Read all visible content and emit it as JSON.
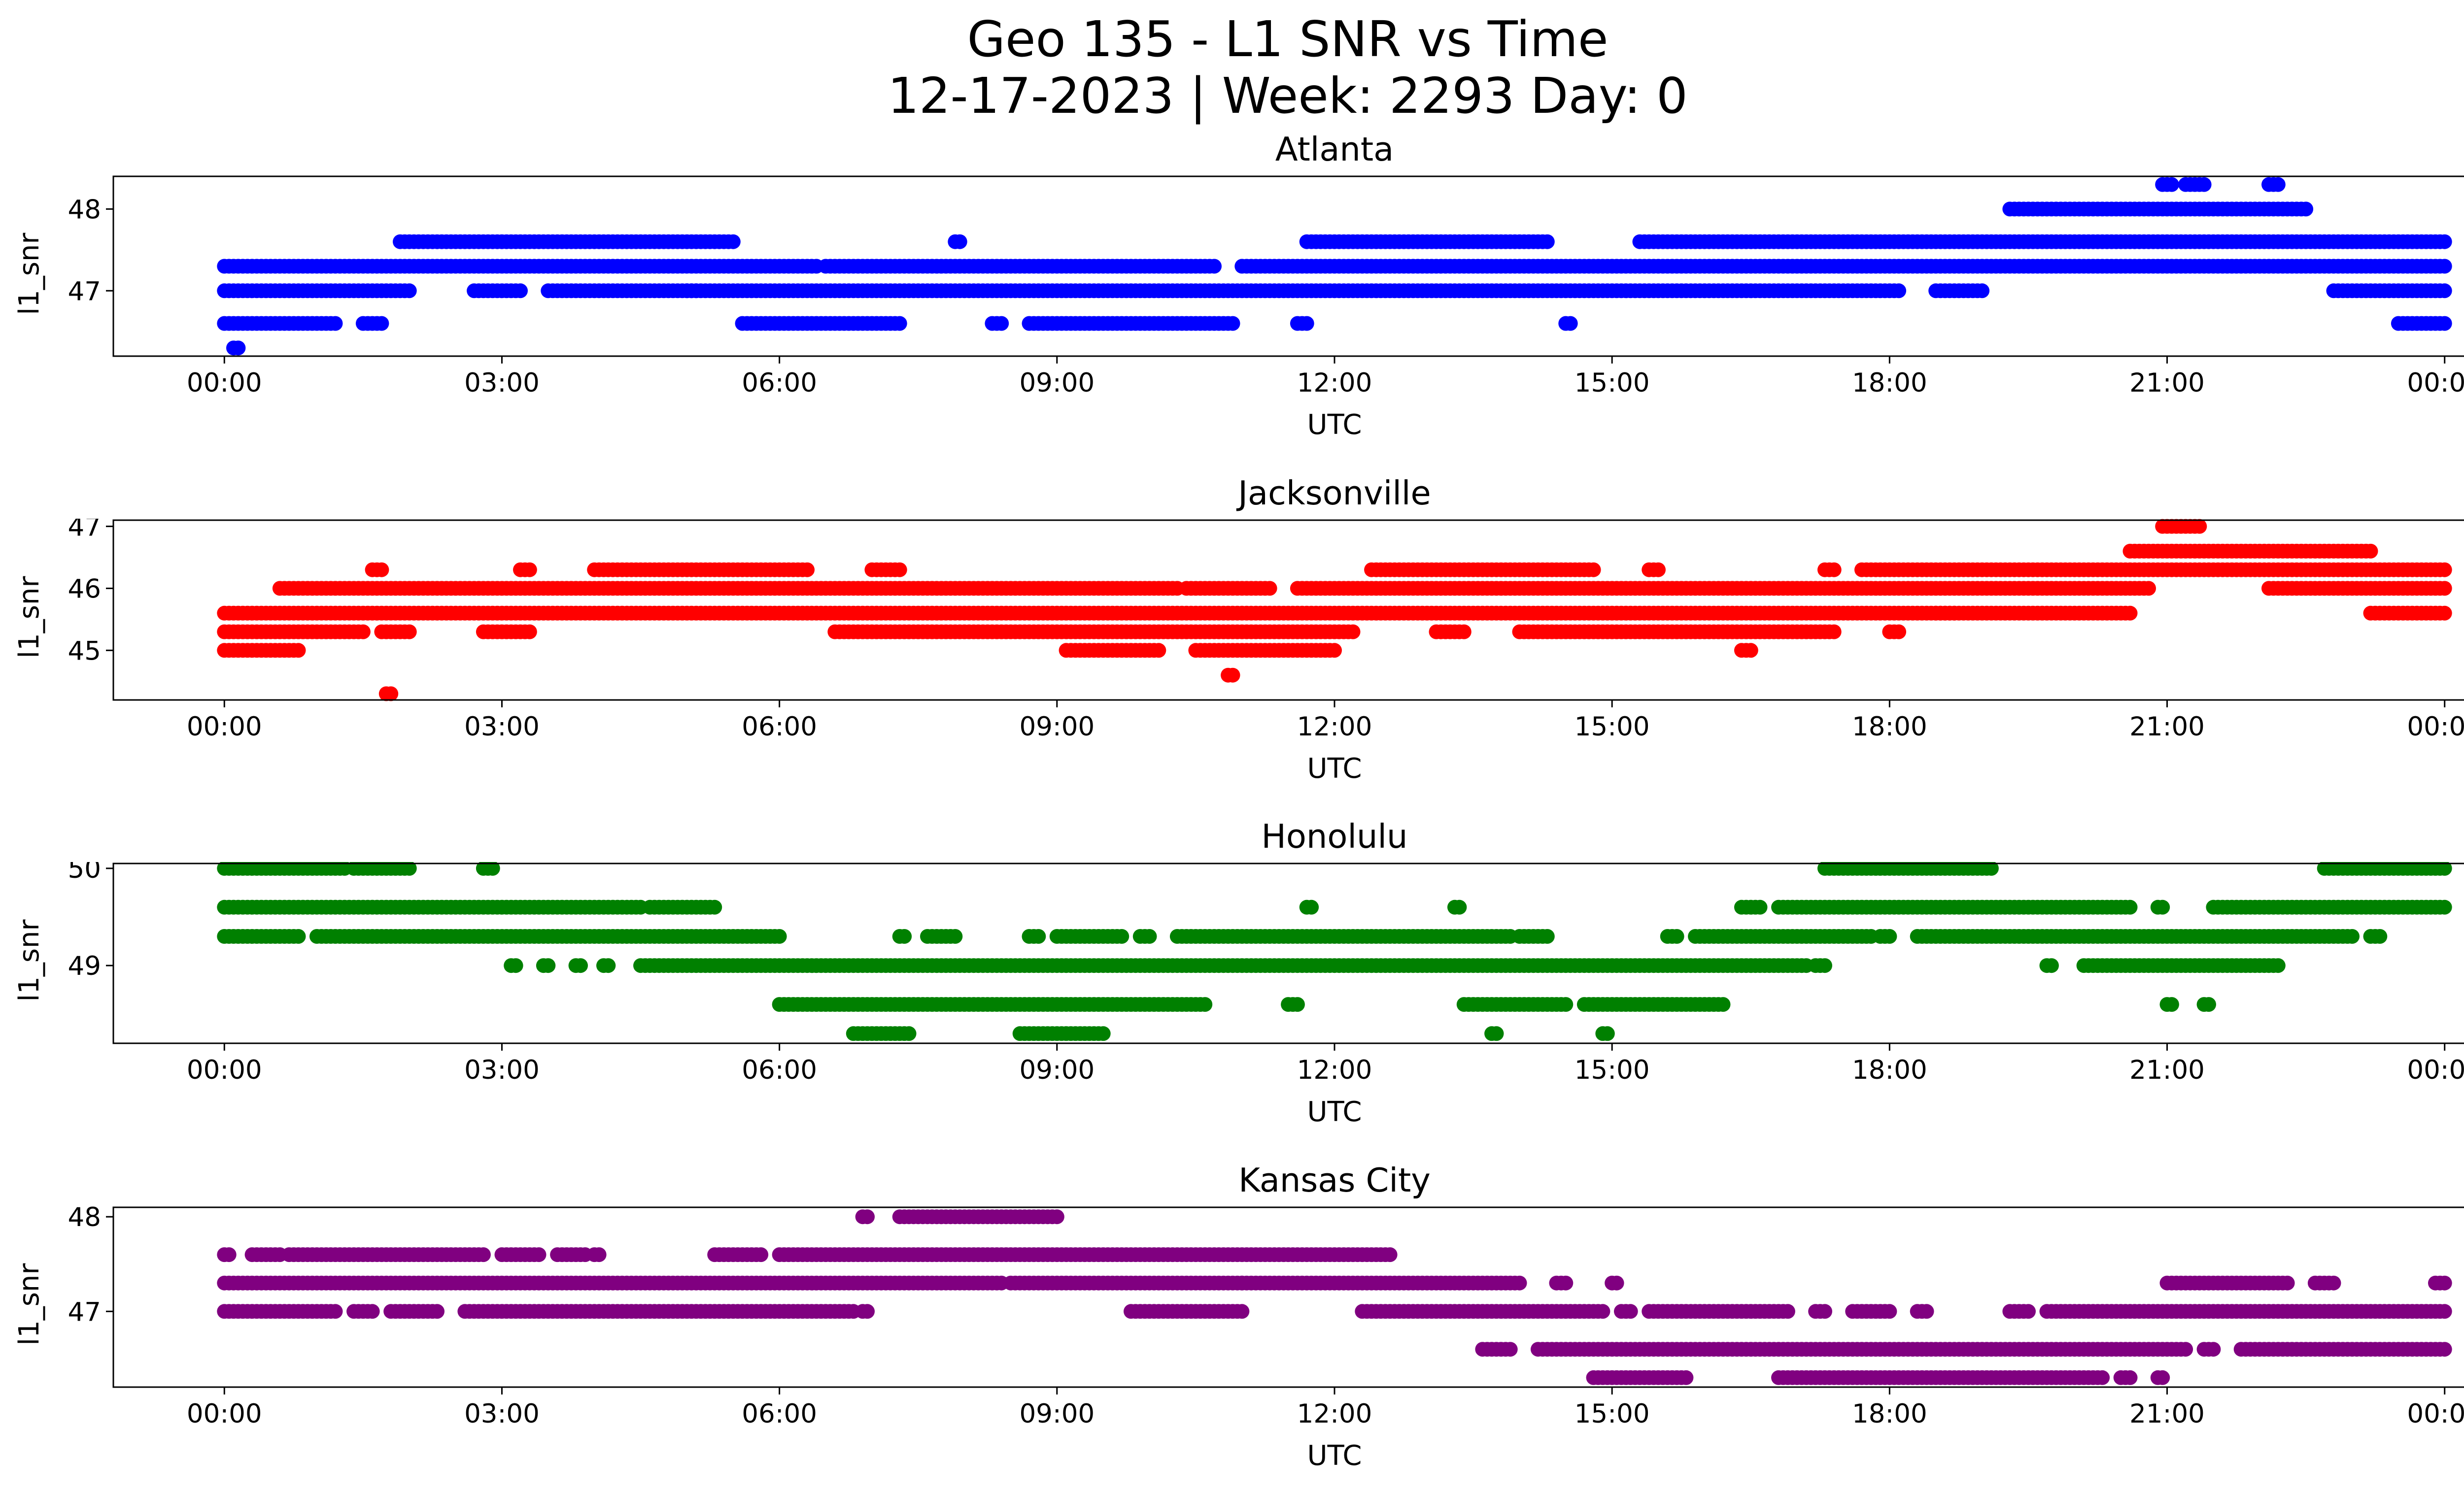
{
  "title_line1": "Geo 135 - L1 SNR vs Time",
  "title_line2": "12-17-2023 | Week: 2293 Day: 0",
  "chart_data": [
    {
      "type": "scatter",
      "title": "Atlanta",
      "xlabel": "UTC",
      "ylabel": "l1_snr",
      "color": "#0000ff",
      "xlim": [
        -1.2,
        25.2
      ],
      "ylim": [
        46.2,
        48.4
      ],
      "xticks": [
        "00:00",
        "03:00",
        "06:00",
        "09:00",
        "12:00",
        "15:00",
        "18:00",
        "21:00",
        "00:00"
      ],
      "yticks": [
        47,
        48
      ],
      "levels": [
        {
          "y": 48.3,
          "x_ranges": [
            [
              20.95,
              21.05
            ],
            [
              21.2,
              21.4
            ],
            [
              22.1,
              22.2
            ]
          ]
        },
        {
          "y": 48.0,
          "x_ranges": [
            [
              19.3,
              22.5
            ]
          ]
        },
        {
          "y": 47.6,
          "x_ranges": [
            [
              1.9,
              5.5
            ],
            [
              7.9,
              7.95
            ],
            [
              11.7,
              14.3
            ],
            [
              15.3,
              24.0
            ]
          ]
        },
        {
          "y": 47.3,
          "x_ranges": [
            [
              0.0,
              6.4
            ],
            [
              6.5,
              10.7
            ],
            [
              11.0,
              24.0
            ]
          ]
        },
        {
          "y": 47.0,
          "x_ranges": [
            [
              0.0,
              2.0
            ],
            [
              2.7,
              3.2
            ],
            [
              3.5,
              5.1
            ],
            [
              5.0,
              18.1
            ],
            [
              18.5,
              19.0
            ],
            [
              22.8,
              24.0
            ]
          ]
        },
        {
          "y": 46.6,
          "x_ranges": [
            [
              0.0,
              1.2
            ],
            [
              1.5,
              1.7
            ],
            [
              5.6,
              7.3
            ],
            [
              8.3,
              8.4
            ],
            [
              8.7,
              10.9
            ],
            [
              11.6,
              11.7
            ],
            [
              14.5,
              14.55
            ],
            [
              23.5,
              24.0
            ]
          ]
        },
        {
          "y": 46.3,
          "x_ranges": [
            [
              0.1,
              0.15
            ]
          ]
        }
      ]
    },
    {
      "type": "scatter",
      "title": "Jacksonville",
      "xlabel": "UTC",
      "ylabel": "l1_snr",
      "color": "#ff0000",
      "xlim": [
        -1.2,
        25.2
      ],
      "ylim": [
        44.2,
        47.1
      ],
      "xticks": [
        "00:00",
        "03:00",
        "06:00",
        "09:00",
        "12:00",
        "15:00",
        "18:00",
        "21:00",
        "00:00"
      ],
      "yticks": [
        45,
        46,
        47
      ],
      "levels": [
        {
          "y": 47.0,
          "x_ranges": [
            [
              20.95,
              21.35
            ]
          ]
        },
        {
          "y": 46.6,
          "x_ranges": [
            [
              20.6,
              23.2
            ]
          ]
        },
        {
          "y": 46.3,
          "x_ranges": [
            [
              1.6,
              1.7
            ],
            [
              3.2,
              3.3
            ],
            [
              4.0,
              6.3
            ],
            [
              7.0,
              7.3
            ],
            [
              12.4,
              14.8
            ],
            [
              15.4,
              15.5
            ],
            [
              17.3,
              17.4
            ],
            [
              17.7,
              24.0
            ]
          ]
        },
        {
          "y": 46.0,
          "x_ranges": [
            [
              0.6,
              10.3
            ],
            [
              10.4,
              11.3
            ],
            [
              11.6,
              20.8
            ],
            [
              22.1,
              24.0
            ]
          ]
        },
        {
          "y": 45.6,
          "x_ranges": [
            [
              0.0,
              18.7
            ],
            [
              18.5,
              20.6
            ],
            [
              23.2,
              24.0
            ]
          ]
        },
        {
          "y": 45.3,
          "x_ranges": [
            [
              0.0,
              1.5
            ],
            [
              1.7,
              2.0
            ],
            [
              2.8,
              3.3
            ],
            [
              6.6,
              12.2
            ],
            [
              13.1,
              13.4
            ],
            [
              14.0,
              17.4
            ],
            [
              18.0,
              18.1
            ]
          ]
        },
        {
          "y": 45.0,
          "x_ranges": [
            [
              0.0,
              0.8
            ],
            [
              9.1,
              10.1
            ],
            [
              10.5,
              12.0
            ],
            [
              16.4,
              16.5
            ]
          ]
        },
        {
          "y": 44.6,
          "x_ranges": [
            [
              10.85,
              10.9
            ]
          ]
        },
        {
          "y": 44.3,
          "x_ranges": [
            [
              1.75,
              1.8
            ]
          ]
        }
      ]
    },
    {
      "type": "scatter",
      "title": "Honolulu",
      "xlabel": "UTC",
      "ylabel": "l1_snr",
      "color": "#008000",
      "xlim": [
        -1.2,
        25.2
      ],
      "ylim": [
        48.2,
        50.05
      ],
      "xticks": [
        "00:00",
        "03:00",
        "06:00",
        "09:00",
        "12:00",
        "15:00",
        "18:00",
        "21:00",
        "00:00"
      ],
      "yticks": [
        49,
        50
      ],
      "levels": [
        {
          "y": 50.0,
          "x_ranges": [
            [
              0.0,
              1.3
            ],
            [
              1.4,
              2.0
            ],
            [
              2.8,
              2.9
            ],
            [
              17.3,
              19.1
            ],
            [
              22.7,
              24.0
            ]
          ]
        },
        {
          "y": 49.6,
          "x_ranges": [
            [
              0.0,
              4.5
            ],
            [
              4.6,
              5.3
            ],
            [
              11.7,
              11.75
            ],
            [
              13.3,
              13.35
            ],
            [
              16.4,
              16.6
            ],
            [
              16.8,
              20.6
            ],
            [
              20.9,
              20.95
            ],
            [
              21.5,
              24.0
            ]
          ]
        },
        {
          "y": 49.3,
          "x_ranges": [
            [
              0.0,
              0.8
            ],
            [
              1.0,
              6.0
            ],
            [
              7.3,
              7.35
            ],
            [
              7.6,
              7.9
            ],
            [
              8.7,
              8.8
            ],
            [
              9.0,
              9.7
            ],
            [
              9.9,
              10.0
            ],
            [
              10.3,
              13.9
            ],
            [
              14.0,
              14.3
            ],
            [
              15.6,
              15.7
            ],
            [
              15.9,
              17.8
            ],
            [
              17.9,
              18.0
            ],
            [
              18.3,
              23.0
            ],
            [
              23.2,
              23.3
            ]
          ]
        },
        {
          "y": 49.0,
          "x_ranges": [
            [
              3.1,
              3.15
            ],
            [
              3.45,
              3.5
            ],
            [
              3.8,
              3.85
            ],
            [
              4.1,
              4.15
            ],
            [
              4.5,
              17.1
            ],
            [
              17.2,
              17.3
            ],
            [
              19.7,
              19.75
            ],
            [
              20.1,
              22.2
            ]
          ]
        },
        {
          "y": 48.6,
          "x_ranges": [
            [
              6.0,
              10.6
            ],
            [
              11.5,
              11.6
            ],
            [
              13.4,
              14.5
            ],
            [
              14.7,
              16.2
            ],
            [
              21.0,
              21.05
            ],
            [
              21.4,
              21.45
            ]
          ]
        },
        {
          "y": 48.3,
          "x_ranges": [
            [
              6.8,
              7.4
            ],
            [
              8.6,
              9.5
            ],
            [
              13.7,
              13.75
            ],
            [
              14.9,
              14.95
            ]
          ]
        }
      ]
    },
    {
      "type": "scatter",
      "title": "Kansas City",
      "xlabel": "UTC",
      "ylabel": "l1_snr",
      "color": "#800080",
      "xlim": [
        -1.2,
        25.2
      ],
      "ylim": [
        46.2,
        48.1
      ],
      "xticks": [
        "00:00",
        "03:00",
        "06:00",
        "09:00",
        "12:00",
        "15:00",
        "18:00",
        "21:00",
        "00:00"
      ],
      "yticks": [
        47,
        48
      ],
      "levels": [
        {
          "y": 48.0,
          "x_ranges": [
            [
              6.9,
              6.95
            ],
            [
              7.3,
              9.0
            ]
          ]
        },
        {
          "y": 47.6,
          "x_ranges": [
            [
              0.0,
              0.05
            ],
            [
              0.3,
              0.6
            ],
            [
              0.7,
              2.8
            ],
            [
              3.0,
              3.4
            ],
            [
              3.6,
              3.9
            ],
            [
              4.0,
              4.05
            ],
            [
              5.3,
              5.8
            ],
            [
              6.0,
              12.6
            ]
          ]
        },
        {
          "y": 47.3,
          "x_ranges": [
            [
              0.0,
              8.4
            ],
            [
              8.5,
              11.0
            ],
            [
              11.0,
              14.0
            ],
            [
              14.4,
              14.5
            ],
            [
              15.0,
              15.05
            ],
            [
              21.0,
              22.3
            ],
            [
              22.6,
              22.8
            ],
            [
              23.9,
              24.0
            ]
          ]
        },
        {
          "y": 47.0,
          "x_ranges": [
            [
              0.0,
              1.2
            ],
            [
              1.4,
              1.6
            ],
            [
              1.8,
              2.3
            ],
            [
              2.6,
              6.8
            ],
            [
              6.9,
              6.95
            ],
            [
              9.8,
              11.0
            ],
            [
              12.3,
              14.9
            ],
            [
              15.1,
              15.2
            ],
            [
              15.4,
              16.9
            ],
            [
              17.2,
              17.3
            ],
            [
              17.6,
              18.0
            ],
            [
              18.3,
              18.4
            ],
            [
              19.3,
              19.5
            ],
            [
              19.7,
              24.0
            ]
          ]
        },
        {
          "y": 46.6,
          "x_ranges": [
            [
              13.6,
              13.9
            ],
            [
              14.2,
              21.2
            ],
            [
              21.4,
              21.5
            ],
            [
              21.8,
              24.0
            ]
          ]
        },
        {
          "y": 46.3,
          "x_ranges": [
            [
              14.8,
              15.8
            ],
            [
              16.8,
              20.3
            ],
            [
              20.5,
              20.6
            ],
            [
              20.9,
              20.95
            ]
          ]
        }
      ]
    }
  ]
}
